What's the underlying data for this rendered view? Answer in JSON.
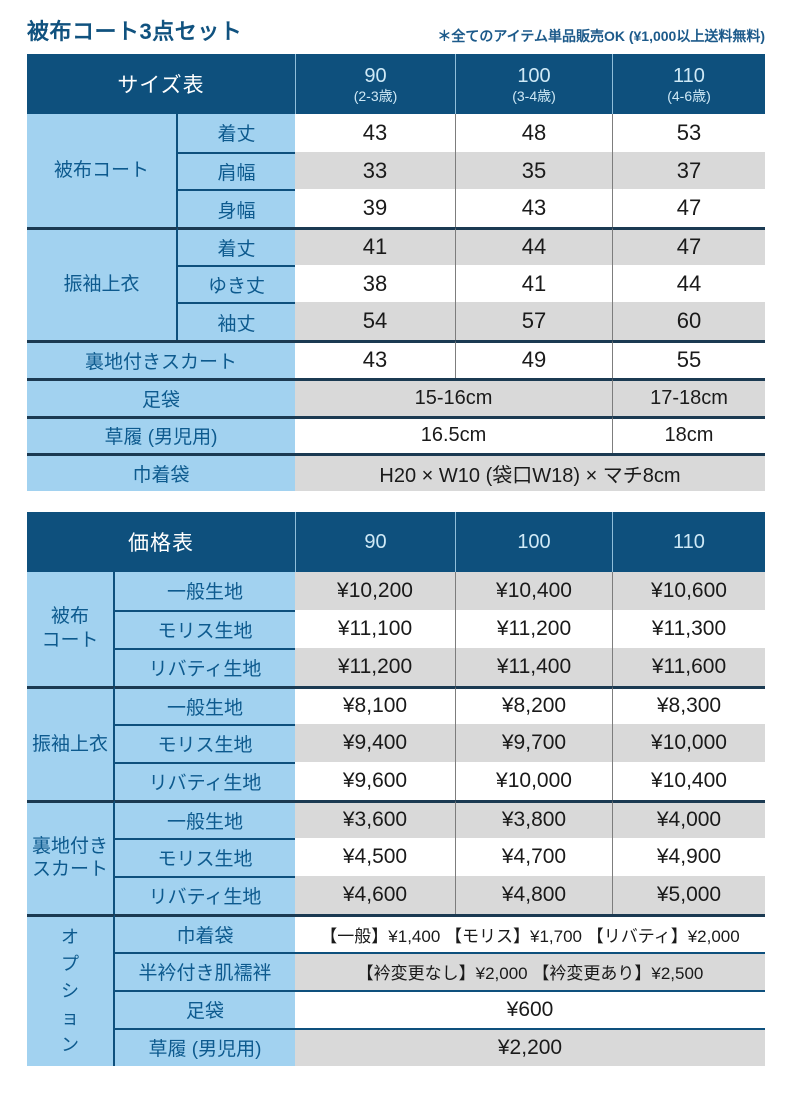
{
  "page": {
    "title": "被布コート3点セット",
    "note": "＊全てのアイテム単品販売OK (¥1,000以上送料無料)"
  },
  "size_table": {
    "title": "サイズ表",
    "columns": [
      {
        "size": "90",
        "age": "(2-3歳)"
      },
      {
        "size": "100",
        "age": "(3-4歳)"
      },
      {
        "size": "110",
        "age": "(4-6歳)"
      }
    ],
    "sections": [
      {
        "category": "被布コート",
        "rows": [
          {
            "label": "着丈",
            "values": [
              "43",
              "48",
              "53"
            ]
          },
          {
            "label": "肩幅",
            "values": [
              "33",
              "35",
              "37"
            ]
          },
          {
            "label": "身幅",
            "values": [
              "39",
              "43",
              "47"
            ]
          }
        ]
      },
      {
        "category": "振袖上衣",
        "rows": [
          {
            "label": "着丈",
            "values": [
              "41",
              "44",
              "47"
            ]
          },
          {
            "label": "ゆき丈",
            "values": [
              "38",
              "41",
              "44"
            ]
          },
          {
            "label": "袖丈",
            "values": [
              "54",
              "57",
              "60"
            ]
          }
        ]
      }
    ],
    "wide_rows": [
      {
        "label": "裏地付きスカート",
        "values": [
          "43",
          "49",
          "55"
        ]
      },
      {
        "label": "足袋",
        "value_90_100": "15-16cm",
        "value_110": "17-18cm"
      },
      {
        "label": "草履 (男児用)",
        "value_90_100": "16.5cm",
        "value_110": "18cm"
      },
      {
        "label": "巾着袋",
        "value_all": "H20 × W10 (袋口W18) × マチ8cm"
      }
    ]
  },
  "price_table": {
    "title": "価格表",
    "columns": [
      "90",
      "100",
      "110"
    ],
    "sections": [
      {
        "category_lines": [
          "被布",
          "コート"
        ],
        "rows": [
          {
            "label": "一般生地",
            "values": [
              "¥10,200",
              "¥10,400",
              "¥10,600"
            ]
          },
          {
            "label": "モリス生地",
            "values": [
              "¥11,100",
              "¥11,200",
              "¥11,300"
            ]
          },
          {
            "label": "リバティ生地",
            "values": [
              "¥11,200",
              "¥11,400",
              "¥11,600"
            ]
          }
        ]
      },
      {
        "category_lines": [
          "振袖上衣",
          ""
        ],
        "rows": [
          {
            "label": "一般生地",
            "values": [
              "¥8,100",
              "¥8,200",
              "¥8,300"
            ]
          },
          {
            "label": "モリス生地",
            "values": [
              "¥9,400",
              "¥9,700",
              "¥10,000"
            ]
          },
          {
            "label": "リバティ生地",
            "values": [
              "¥9,600",
              "¥10,000",
              "¥10,400"
            ]
          }
        ]
      },
      {
        "category_lines": [
          "裏地付き",
          "スカート"
        ],
        "rows": [
          {
            "label": "一般生地",
            "values": [
              "¥3,600",
              "¥3,800",
              "¥4,000"
            ]
          },
          {
            "label": "モリス生地",
            "values": [
              "¥4,500",
              "¥4,700",
              "¥4,900"
            ]
          },
          {
            "label": "リバティ生地",
            "values": [
              "¥4,600",
              "¥4,800",
              "¥5,000"
            ]
          }
        ]
      }
    ],
    "options": {
      "category": "オプション",
      "rows": [
        {
          "label": "巾着袋",
          "value": "【一般】¥1,400 【モリス】¥1,700 【リバティ】¥2,000"
        },
        {
          "label": "半衿付き肌襦袢",
          "value": "【衿変更なし】¥2,000 【衿変更あり】¥2,500"
        },
        {
          "label": "足袋",
          "value": "¥600"
        },
        {
          "label": "草履 (男児用)",
          "value": "¥2,200"
        }
      ]
    }
  },
  "colors": {
    "header_bg": "#0e507d",
    "label_bg": "#a2d2f0",
    "label_text": "#0d5a8e",
    "row_gray": "#d9d9d9",
    "section_line": "#1b3a52",
    "sub_line": "#0e507d",
    "column_line": "#7d7d7d"
  }
}
